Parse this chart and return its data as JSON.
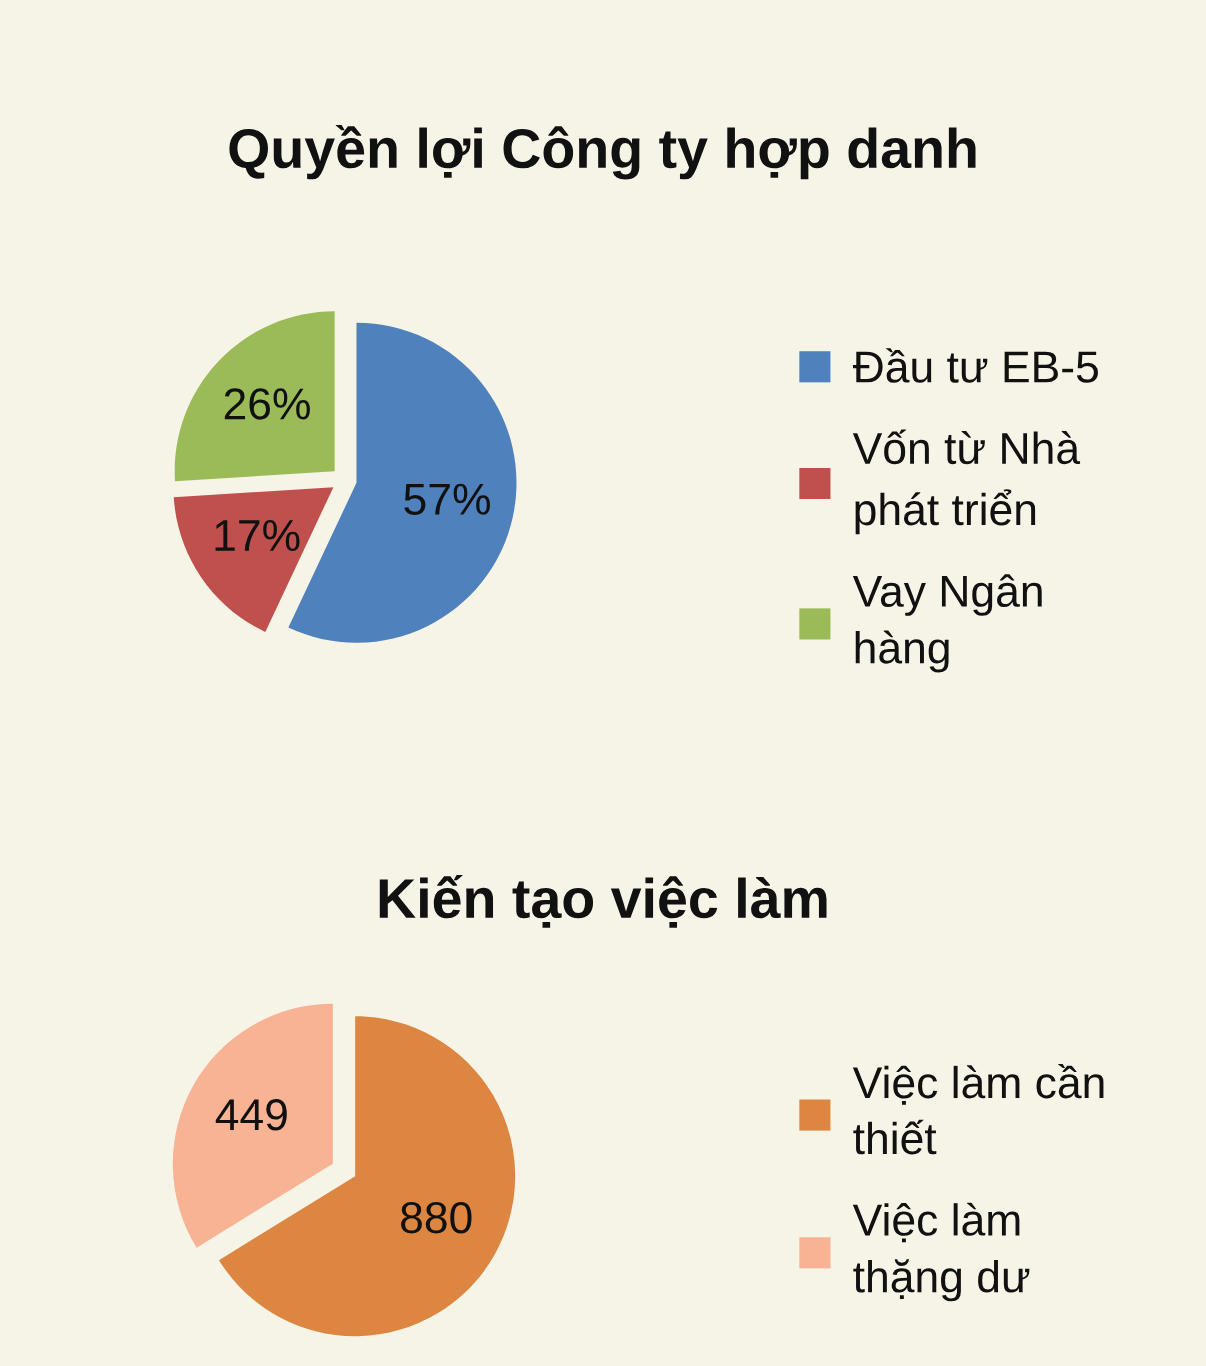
{
  "chart_data": [
    {
      "type": "pie",
      "title": "Quyền lợi Công ty hợp danh",
      "categories": [
        "Đầu tư EB-5",
        "Vốn từ Nhà\nphát triển",
        "Vay Ngân\nhàng"
      ],
      "values": [
        57,
        17,
        26
      ],
      "colors": [
        "#4f81bd",
        "#c0504d",
        "#9bbb59"
      ],
      "value_labels": [
        "57%",
        "17%",
        "26%"
      ],
      "legend": "right"
    },
    {
      "type": "pie",
      "title": "Kiến tạo việc làm",
      "categories": [
        "Việc làm cần\nthiết",
        "Việc làm\nthặng dư"
      ],
      "values": [
        880,
        449
      ],
      "colors": [
        "#dc8641",
        "#f8b394"
      ],
      "data_labels": true,
      "legend": "right"
    }
  ]
}
